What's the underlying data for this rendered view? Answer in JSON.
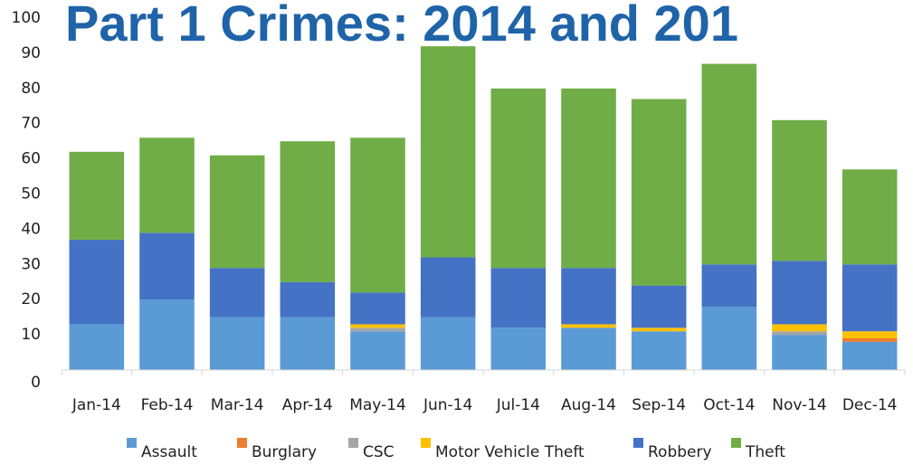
{
  "chart_data": {
    "type": "stacked_bar",
    "title": "Part 1 Crimes: 2014 and 201",
    "categories": [
      "Jan-14",
      "Feb-14",
      "Mar-14",
      "Apr-14",
      "May-14",
      "Jun-14",
      "Jul-14",
      "Aug-14",
      "Sep-14",
      "Oct-14",
      "Nov-14",
      "Dec-14"
    ],
    "series": [
      {
        "name": "Assault",
        "color": "#5b9bd5",
        "values": [
          13,
          20,
          15,
          15,
          11,
          15,
          12,
          12,
          11,
          18,
          10,
          8
        ]
      },
      {
        "name": "Burglary",
        "color": "#ed7d31",
        "values": [
          0,
          0,
          0,
          0,
          0,
          0,
          0,
          0,
          0,
          0,
          0,
          1
        ]
      },
      {
        "name": "CSC",
        "color": "#a5a5a5",
        "values": [
          0,
          0,
          0,
          0,
          1,
          0,
          0,
          0,
          0,
          0,
          1,
          0
        ]
      },
      {
        "name": "Motor Vehicle Theft",
        "color": "#ffc000",
        "values": [
          0,
          0,
          0,
          0,
          1,
          0,
          0,
          1,
          1,
          0,
          2,
          2
        ]
      },
      {
        "name": "Robbery",
        "color": "#4472c4",
        "values": [
          24,
          19,
          14,
          10,
          9,
          17,
          17,
          16,
          12,
          12,
          18,
          19
        ]
      },
      {
        "name": "Theft",
        "color": "#70ad47",
        "values": [
          25,
          27,
          32,
          40,
          44,
          60,
          51,
          51,
          53,
          57,
          40,
          27
        ]
      }
    ],
    "ylim": [
      0,
      100
    ],
    "yticks": [
      0,
      10,
      20,
      30,
      40,
      50,
      60,
      70,
      80,
      90,
      100
    ],
    "grid": false,
    "legend": "bottom"
  }
}
